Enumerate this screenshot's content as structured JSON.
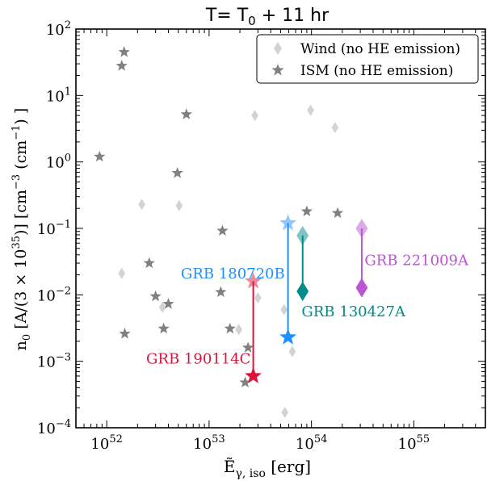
{
  "chart_data": {
    "type": "scatter",
    "title": "T= T",
    "title_sub": "0",
    "title_rest": " + 11 hr",
    "xlabel_main": "Ẽ",
    "xlabel_sub": "γ, iso",
    "xlabel_rest": " [erg]",
    "ylabel_main": "n",
    "ylabel_sub": "0",
    "ylabel_mid": " [A/(3 × 10",
    "ylabel_sup": "35",
    "ylabel_mid2": ")] [cm",
    "ylabel_sup2": "−3",
    "ylabel_mid3": " (cm",
    "ylabel_sup3": "−1",
    "ylabel_end": ") ]",
    "xscale": "log",
    "yscale": "log",
    "xlim": [
      5e+51,
      5e+55
    ],
    "ylim": [
      0.0001,
      100
    ],
    "x_tick_labels": [
      {
        "v": 1e+52,
        "base": "10",
        "exp": "52"
      },
      {
        "v": 1e+53,
        "base": "10",
        "exp": "53"
      },
      {
        "v": 1e+54,
        "base": "10",
        "exp": "54"
      },
      {
        "v": 1e+55,
        "base": "10",
        "exp": "55"
      }
    ],
    "y_tick_labels": [
      {
        "v": 0.0001,
        "base": "10",
        "exp": "−4"
      },
      {
        "v": 0.001,
        "base": "10",
        "exp": "−3"
      },
      {
        "v": 0.01,
        "base": "10",
        "exp": "−2"
      },
      {
        "v": 0.1,
        "base": "10",
        "exp": "−1"
      },
      {
        "v": 1,
        "base": "10",
        "exp": "0"
      },
      {
        "v": 10,
        "base": "10",
        "exp": "1"
      },
      {
        "v": 100,
        "base": "10",
        "exp": "2"
      }
    ],
    "legend": {
      "position": "top-right",
      "entries": [
        {
          "label": "Wind (no HE emission)",
          "marker": "diamond",
          "color": "#d3d3d3"
        },
        {
          "label": "ISM (no HE emission)",
          "marker": "star",
          "color": "#808080"
        }
      ]
    },
    "series": [
      {
        "name": "Wind (no HE emission)",
        "marker": "diamond",
        "color": "#d3d3d3",
        "points": [
          {
            "x": 1.4e+52,
            "y": 0.021
          },
          {
            "x": 2.2e+52,
            "y": 0.23
          },
          {
            "x": 3.5e+52,
            "y": 0.0065
          },
          {
            "x": 5.1e+52,
            "y": 0.22
          },
          {
            "x": 1.95e+53,
            "y": 0.003
          },
          {
            "x": 2.8e+53,
            "y": 5.0
          },
          {
            "x": 3e+53,
            "y": 0.009
          },
          {
            "x": 5.4e+53,
            "y": 0.006
          },
          {
            "x": 5.5e+53,
            "y": 0.00017
          },
          {
            "x": 6.5e+53,
            "y": 0.0014
          },
          {
            "x": 9.8e+53,
            "y": 6.0
          },
          {
            "x": 1.7e+54,
            "y": 3.3
          }
        ]
      },
      {
        "name": "ISM (no HE emission)",
        "marker": "star",
        "color": "#808080",
        "points": [
          {
            "x": 8.5e+51,
            "y": 1.2
          },
          {
            "x": 1.4e+52,
            "y": 28
          },
          {
            "x": 1.48e+52,
            "y": 45
          },
          {
            "x": 1.5e+52,
            "y": 0.0026
          },
          {
            "x": 2.6e+52,
            "y": 0.03
          },
          {
            "x": 3e+52,
            "y": 0.0095
          },
          {
            "x": 3.6e+52,
            "y": 0.0031
          },
          {
            "x": 4e+52,
            "y": 0.0073
          },
          {
            "x": 4.9e+52,
            "y": 0.68
          },
          {
            "x": 6e+52,
            "y": 5.2
          },
          {
            "x": 1.3e+53,
            "y": 0.011
          },
          {
            "x": 1.35e+53,
            "y": 0.092
          },
          {
            "x": 1.6e+53,
            "y": 0.0031
          },
          {
            "x": 2.25e+53,
            "y": 0.00048
          },
          {
            "x": 2.4e+53,
            "y": 0.0016
          },
          {
            "x": 9e+53,
            "y": 0.18
          },
          {
            "x": 1.8e+54,
            "y": 0.17
          }
        ]
      }
    ],
    "grbs": [
      {
        "name": "GRB 190114C",
        "x": 2.7e+53,
        "y_low": 0.0006,
        "y_high": 0.016,
        "marker": "star",
        "color": "#dc143c",
        "label_anchor": "end",
        "label_x": 2.55e+53,
        "label_y": 0.0011
      },
      {
        "name": "GRB 180720B",
        "x": 5.9e+53,
        "y_low": 0.0023,
        "y_high": 0.12,
        "marker": "star",
        "color": "#1e90ff",
        "label_anchor": "end",
        "label_x": 5.5e+53,
        "label_y": 0.021
      },
      {
        "name": "GRB 130427A",
        "x": 8.2e+53,
        "y_low": 0.0113,
        "y_high": 0.078,
        "marker": "diamond",
        "color": "#008b8b",
        "label_anchor": "start",
        "label_x": 8e+53,
        "label_y": 0.0056
      },
      {
        "name": "GRB 221009A",
        "x": 3.1e+54,
        "y_low": 0.0128,
        "y_high": 0.1,
        "marker": "diamond",
        "color": "#ba55d3",
        "label_anchor": "start",
        "label_x": 3.3e+54,
        "label_y": 0.033
      }
    ]
  }
}
